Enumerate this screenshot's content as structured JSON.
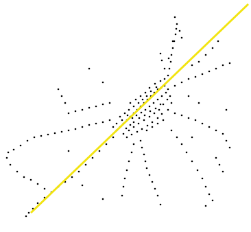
{
  "chart_data": {
    "type": "scatter",
    "xlim": [
      0,
      366
    ],
    "ylim": [
      0,
      338
    ],
    "tick_labels": false,
    "grid": false,
    "series": [
      {
        "type": "scatter",
        "color": "#000000",
        "marker": "circle",
        "x": [
          170,
          175,
          180,
          185,
          190,
          195,
          200,
          205,
          210,
          215,
          220,
          225,
          230,
          235,
          240,
          175,
          182,
          188,
          195,
          202,
          208,
          214,
          220,
          228,
          180,
          188,
          195,
          202,
          210,
          218,
          225,
          232,
          238,
          244,
          185,
          192,
          200,
          207,
          215,
          222,
          230,
          236,
          178,
          186,
          193,
          199,
          206,
          212,
          218,
          224,
          230,
          236,
          242,
          170,
          165,
          190,
          198,
          205,
          212,
          218,
          226,
          234,
          240,
          245,
          248,
          250,
          195,
          203,
          211,
          219,
          227,
          234,
          190,
          184,
          214,
          222,
          230,
          238,
          245,
          245,
          247,
          249,
          250,
          252,
          254,
          256,
          257,
          258,
          262,
          265,
          240,
          236,
          234,
          255,
          265,
          275,
          285,
          295,
          305,
          315,
          325,
          335,
          300,
          310,
          318,
          290,
          280,
          255,
          265,
          275,
          285,
          295,
          305,
          315,
          325,
          330,
          335,
          250,
          258,
          265,
          272,
          280,
          288,
          295,
          300,
          305,
          310,
          315,
          320,
          325,
          205,
          207,
          210,
          212,
          214,
          218,
          222,
          226,
          230,
          234,
          195,
          192,
          188,
          185,
          182,
          180,
          178,
          165,
          155,
          145,
          135,
          125,
          115,
          105,
          95,
          85,
          75,
          65,
          55,
          48,
          42,
          38,
          160,
          150,
          140,
          130,
          120,
          110,
          100,
          90,
          80,
          70,
          60,
          50,
          40,
          30,
          20,
          12,
          10,
          15,
          25,
          35,
          45,
          55,
          65,
          160,
          150,
          140,
          130,
          120,
          110,
          100,
          95,
          90,
          85,
          275,
          290,
          150,
          130,
          300,
          150,
          100,
          330,
          280,
          120,
          255,
          252,
          246
        ],
        "values": [
          190,
          185,
          180,
          175,
          170,
          165,
          160,
          155,
          150,
          145,
          140,
          135,
          130,
          128,
          125,
          170,
          165,
          160,
          155,
          150,
          145,
          140,
          133,
          127,
          195,
          190,
          185,
          180,
          175,
          170,
          165,
          160,
          152,
          145,
          200,
          196,
          192,
          188,
          183,
          178,
          172,
          166,
          175,
          168,
          172,
          168,
          164,
          160,
          155,
          150,
          145,
          140,
          135,
          180,
          185,
          150,
          145,
          140,
          135,
          128,
          122,
          118,
          115,
          130,
          140,
          150,
          178,
          172,
          168,
          162,
          158,
          152,
          182,
          187,
          190,
          185,
          180,
          175,
          160,
          110,
          100,
          90,
          80,
          70,
          60,
          50,
          42,
          35,
          45,
          55,
          100,
          88,
          78,
          125,
          120,
          115,
          112,
          108,
          104,
          100,
          95,
          92,
          80,
          70,
          60,
          90,
          95,
          165,
          168,
          172,
          175,
          180,
          185,
          190,
          195,
          205,
          215,
          190,
          200,
          210,
          222,
          235,
          248,
          260,
          272,
          283,
          292,
          230,
          240,
          250,
          205,
          215,
          225,
          235,
          245,
          255,
          265,
          275,
          285,
          298,
          210,
          222,
          235,
          248,
          260,
          272,
          285,
          200,
          210,
          220,
          230,
          240,
          250,
          258,
          265,
          272,
          280,
          288,
          296,
          304,
          310,
          315,
          175,
          178,
          180,
          182,
          185,
          188,
          190,
          192,
          194,
          196,
          198,
          200,
          205,
          212,
          218,
          222,
          230,
          240,
          250,
          258,
          262,
          268,
          275,
          150,
          152,
          155,
          157,
          160,
          162,
          165,
          150,
          140,
          130,
          140,
          150,
          120,
          100,
          300,
          290,
          220,
          160,
          200,
          270,
          25,
          60,
          85
        ]
      },
      {
        "type": "line",
        "color": "#f2e411",
        "line_style": "solid",
        "x": [
          45,
          362
        ],
        "values": [
          310,
          6
        ]
      }
    ]
  }
}
